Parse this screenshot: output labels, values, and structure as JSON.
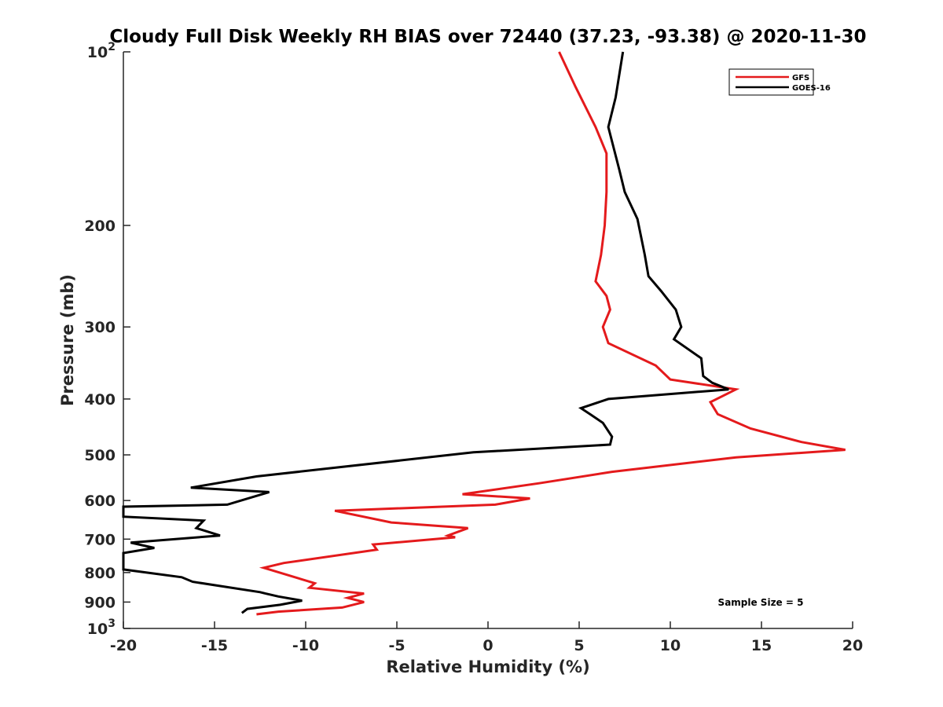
{
  "chart_data": {
    "type": "line",
    "title": "Cloudy Full Disk Weekly RH BIAS over 72440 (37.23, -93.38) @ 2020-11-30",
    "xlabel": "Relative Humidity (%)",
    "ylabel": "Pressure (mb)",
    "xlim": [
      -20,
      20
    ],
    "ylim": [
      100,
      1000
    ],
    "y_scale": "log",
    "y_reversed": true,
    "grid": false,
    "legend_position": "top-right",
    "x_ticks": [
      "-20",
      "-15",
      "-10",
      "-5",
      "0",
      "5",
      "10",
      "15",
      "20"
    ],
    "y_ticks": [
      {
        "base": "10",
        "exp": "2"
      },
      {
        "base": "200",
        "exp": ""
      },
      {
        "base": "300",
        "exp": ""
      },
      {
        "base": "400",
        "exp": ""
      },
      {
        "base": "500",
        "exp": ""
      },
      {
        "base": "600",
        "exp": ""
      },
      {
        "base": "700",
        "exp": ""
      },
      {
        "base": "800",
        "exp": ""
      },
      {
        "base": "900",
        "exp": ""
      },
      {
        "base": "10",
        "exp": "3"
      }
    ],
    "series": [
      {
        "name": "GFS",
        "color": "#e41a1c",
        "points": [
          [
            3.9,
            100
          ],
          [
            4.8,
            115
          ],
          [
            5.9,
            135
          ],
          [
            6.5,
            150
          ],
          [
            6.5,
            175
          ],
          [
            6.4,
            200
          ],
          [
            6.2,
            225
          ],
          [
            5.9,
            250
          ],
          [
            6.5,
            265
          ],
          [
            6.7,
            280
          ],
          [
            6.3,
            300
          ],
          [
            6.6,
            320
          ],
          [
            9.2,
            350
          ],
          [
            10.0,
            370
          ],
          [
            13.6,
            385
          ],
          [
            12.2,
            405
          ],
          [
            12.6,
            425
          ],
          [
            14.4,
            450
          ],
          [
            17.2,
            475
          ],
          [
            19.6,
            490
          ],
          [
            13.6,
            505
          ],
          [
            6.8,
            535
          ],
          [
            2.8,
            560
          ],
          [
            -1.4,
            585
          ],
          [
            2.3,
            595
          ],
          [
            0.4,
            610
          ],
          [
            -8.4,
            625
          ],
          [
            -5.3,
            655
          ],
          [
            -1.1,
            670
          ],
          [
            -2.2,
            690
          ],
          [
            -1.8,
            695
          ],
          [
            -6.3,
            715
          ],
          [
            -6.1,
            730
          ],
          [
            -11.2,
            770
          ],
          [
            -12.3,
            785
          ],
          [
            -9.5,
            835
          ],
          [
            -9.8,
            850
          ],
          [
            -6.8,
            870
          ],
          [
            -7.7,
            885
          ],
          [
            -6.8,
            900
          ],
          [
            -8.0,
            920
          ],
          [
            -11.5,
            935
          ],
          [
            -12.7,
            945
          ]
        ]
      },
      {
        "name": "GOES-16",
        "color": "#000000",
        "points": [
          [
            7.4,
            100
          ],
          [
            7.0,
            120
          ],
          [
            6.6,
            135
          ],
          [
            7.2,
            160
          ],
          [
            7.5,
            175
          ],
          [
            8.2,
            195
          ],
          [
            8.6,
            225
          ],
          [
            8.8,
            245
          ],
          [
            9.5,
            260
          ],
          [
            10.3,
            280
          ],
          [
            10.6,
            300
          ],
          [
            10.2,
            315
          ],
          [
            11.7,
            340
          ],
          [
            11.8,
            365
          ],
          [
            12.3,
            375
          ],
          [
            13.2,
            385
          ],
          [
            6.6,
            400
          ],
          [
            5.1,
            415
          ],
          [
            5.6,
            425
          ],
          [
            6.3,
            440
          ],
          [
            6.8,
            465
          ],
          [
            6.7,
            480
          ],
          [
            -0.8,
            495
          ],
          [
            -12.7,
            545
          ],
          [
            -16.3,
            570
          ],
          [
            -12.0,
            580
          ],
          [
            -14.3,
            610
          ],
          [
            -20.0,
            615
          ],
          [
            -20.0,
            640
          ],
          [
            -15.6,
            650
          ],
          [
            -16.0,
            670
          ],
          [
            -14.7,
            690
          ],
          [
            -19.6,
            710
          ],
          [
            -18.3,
            725
          ],
          [
            -20.0,
            740
          ],
          [
            -20.0,
            790
          ],
          [
            -16.8,
            815
          ],
          [
            -16.2,
            830
          ],
          [
            -12.5,
            865
          ],
          [
            -12.2,
            870
          ],
          [
            -11.5,
            880
          ],
          [
            -10.2,
            895
          ],
          [
            -11.4,
            910
          ],
          [
            -13.2,
            925
          ],
          [
            -13.5,
            940
          ]
        ]
      }
    ],
    "legend": [
      {
        "label": "GFS",
        "color": "#e41a1c"
      },
      {
        "label": "GOES-16",
        "color": "#000000"
      }
    ],
    "annotation": "Sample Size = 5"
  }
}
